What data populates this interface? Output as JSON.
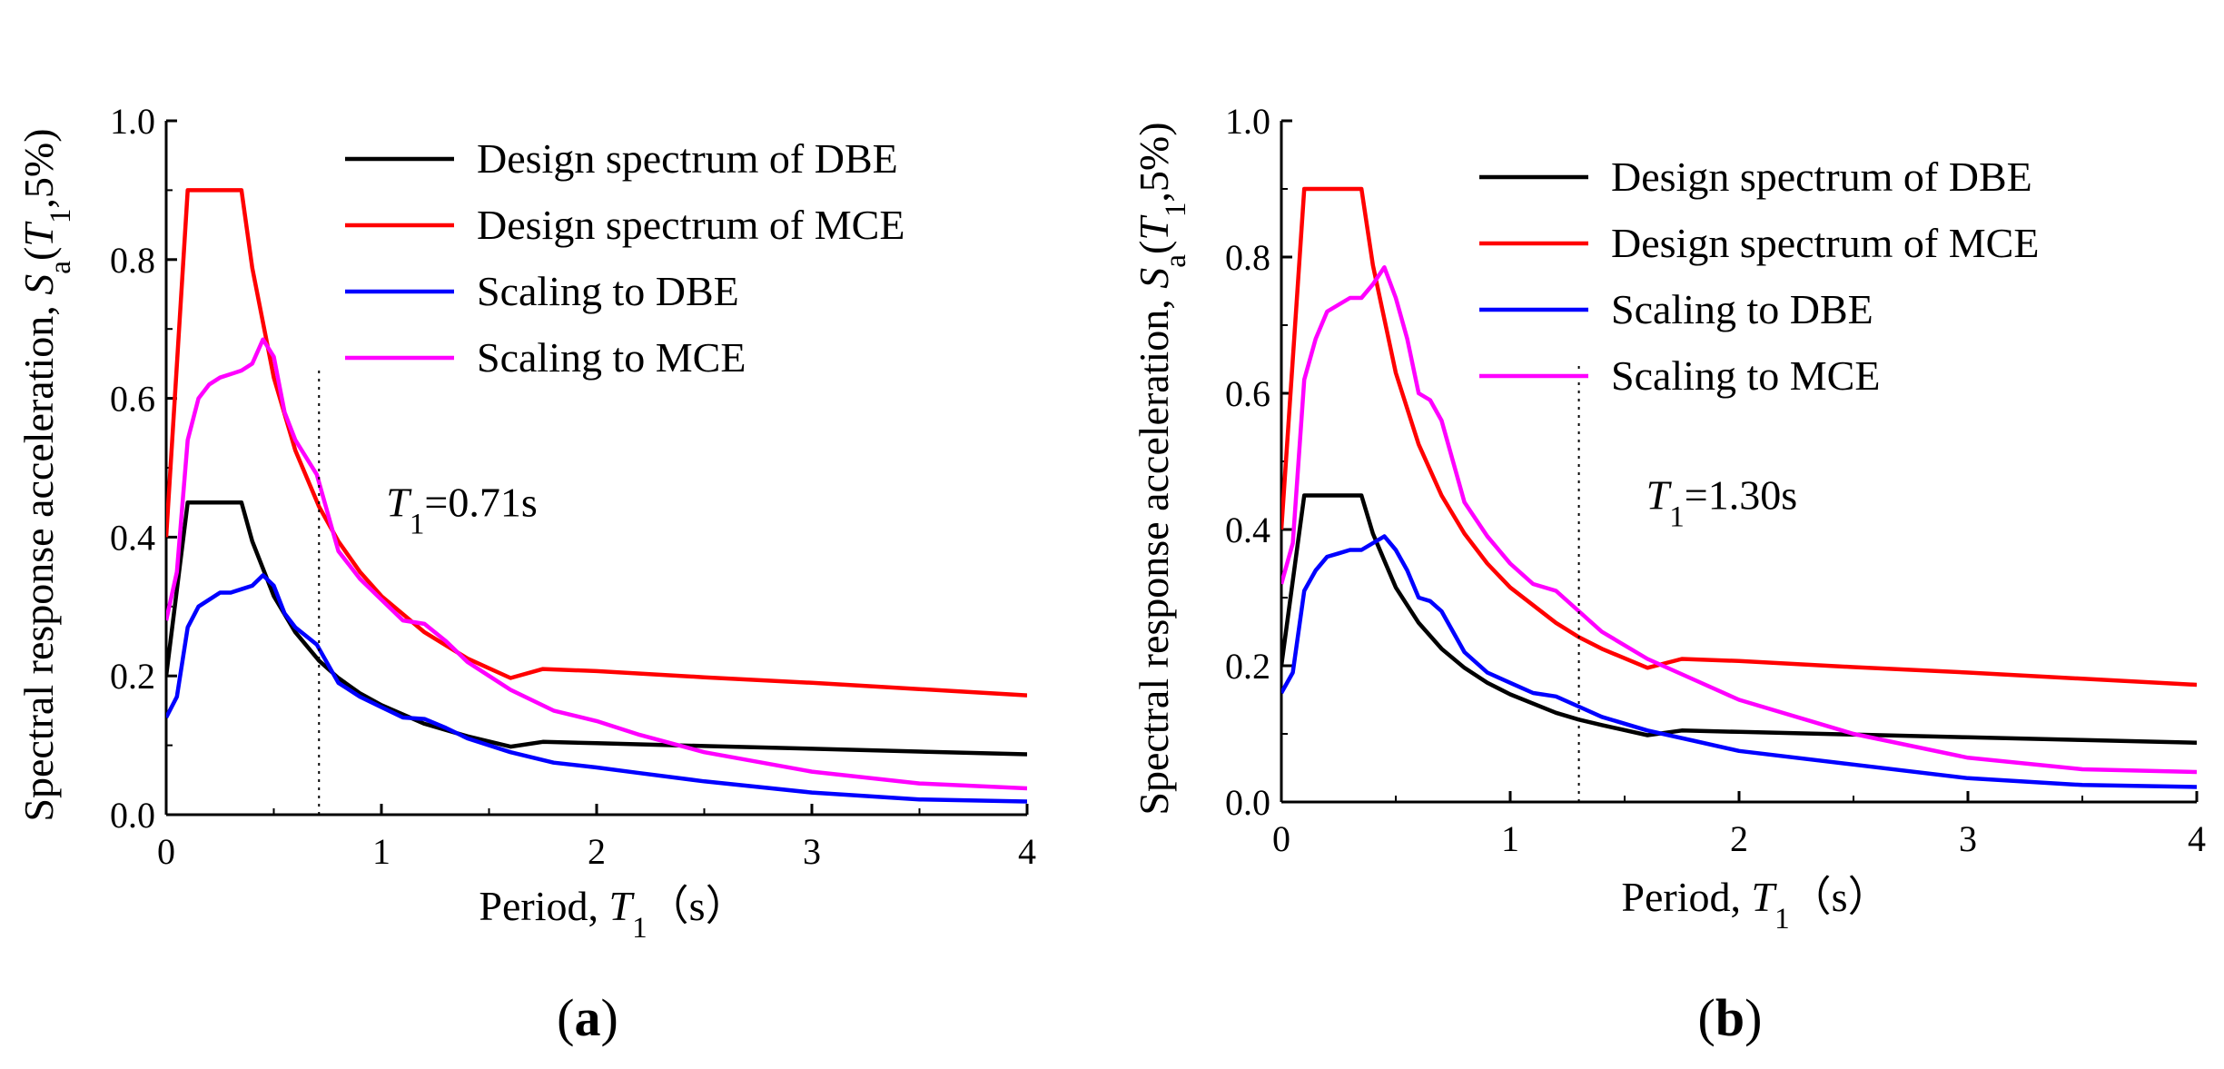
{
  "chart_data": [
    {
      "panel_id": "a",
      "panel_label": "(a)",
      "type": "line",
      "xlabel": "Period, T1（s）",
      "ylabel": "Spectral response acceleration, Sa(T1,5%)",
      "xlim": [
        0,
        4
      ],
      "ylim": [
        0,
        1.0
      ],
      "xticks": [
        0,
        1,
        2,
        3,
        4
      ],
      "yticks": [
        0.0,
        0.2,
        0.4,
        0.6,
        0.8,
        1.0
      ],
      "xtick_labels": [
        "0",
        "1",
        "2",
        "3",
        "4"
      ],
      "ytick_labels": [
        "0.0",
        "0.2",
        "0.4",
        "0.6",
        "0.8",
        "1.0"
      ],
      "grid": false,
      "legend_position": "top-right",
      "annotation": {
        "text": "T1=0.71s",
        "x": 0.71
      },
      "series": [
        {
          "name": "Design spectrum of DBE",
          "color": "#000000",
          "x": [
            0,
            0.1,
            0.35,
            0.4,
            0.5,
            0.6,
            0.71,
            0.8,
            0.9,
            1.0,
            1.2,
            1.4,
            1.6,
            1.75,
            2.0,
            2.5,
            3.0,
            3.5,
            4.0
          ],
          "y": [
            0.2,
            0.45,
            0.45,
            0.394,
            0.315,
            0.263,
            0.222,
            0.197,
            0.175,
            0.158,
            0.131,
            0.113,
            0.098,
            0.105,
            0.103,
            0.099,
            0.095,
            0.091,
            0.087
          ]
        },
        {
          "name": "Design spectrum of MCE",
          "color": "#ff0000",
          "x": [
            0,
            0.1,
            0.35,
            0.4,
            0.5,
            0.6,
            0.71,
            0.8,
            0.9,
            1.0,
            1.2,
            1.4,
            1.6,
            1.75,
            2.0,
            2.5,
            3.0,
            3.5,
            4.0
          ],
          "y": [
            0.4,
            0.9,
            0.9,
            0.788,
            0.63,
            0.525,
            0.444,
            0.394,
            0.35,
            0.315,
            0.263,
            0.225,
            0.197,
            0.21,
            0.207,
            0.198,
            0.19,
            0.181,
            0.172
          ]
        },
        {
          "name": "Scaling to DBE",
          "color": "#0000ff",
          "x": [
            0,
            0.05,
            0.1,
            0.15,
            0.2,
            0.25,
            0.3,
            0.35,
            0.4,
            0.45,
            0.5,
            0.55,
            0.6,
            0.7,
            0.8,
            0.9,
            1.0,
            1.1,
            1.2,
            1.3,
            1.4,
            1.5,
            1.6,
            1.8,
            2.0,
            2.2,
            2.5,
            3.0,
            3.5,
            4.0
          ],
          "y": [
            0.14,
            0.17,
            0.27,
            0.3,
            0.31,
            0.32,
            0.32,
            0.325,
            0.33,
            0.345,
            0.33,
            0.29,
            0.27,
            0.245,
            0.19,
            0.17,
            0.155,
            0.14,
            0.138,
            0.125,
            0.11,
            0.1,
            0.09,
            0.075,
            0.068,
            0.06,
            0.048,
            0.032,
            0.022,
            0.019
          ]
        },
        {
          "name": "Scaling to MCE",
          "color": "#ff00ff",
          "x": [
            0,
            0.05,
            0.1,
            0.15,
            0.2,
            0.25,
            0.3,
            0.35,
            0.4,
            0.45,
            0.5,
            0.55,
            0.6,
            0.7,
            0.8,
            0.9,
            1.0,
            1.1,
            1.2,
            1.3,
            1.4,
            1.5,
            1.6,
            1.8,
            2.0,
            2.2,
            2.5,
            3.0,
            3.5,
            4.0
          ],
          "y": [
            0.28,
            0.35,
            0.54,
            0.6,
            0.62,
            0.63,
            0.635,
            0.64,
            0.65,
            0.685,
            0.66,
            0.58,
            0.54,
            0.49,
            0.38,
            0.34,
            0.31,
            0.28,
            0.275,
            0.25,
            0.22,
            0.2,
            0.18,
            0.15,
            0.135,
            0.115,
            0.09,
            0.062,
            0.045,
            0.038
          ]
        }
      ]
    },
    {
      "panel_id": "b",
      "panel_label": "(b)",
      "type": "line",
      "xlabel": "Period, T1（s）",
      "ylabel": "Spectral response acceleration, Sa(T1,5%)",
      "xlim": [
        0,
        4
      ],
      "ylim": [
        0,
        1.0
      ],
      "xticks": [
        0,
        1,
        2,
        3,
        4
      ],
      "yticks": [
        0.0,
        0.2,
        0.4,
        0.6,
        0.8,
        1.0
      ],
      "xtick_labels": [
        "0",
        "1",
        "2",
        "3",
        "4"
      ],
      "ytick_labels": [
        "0.0",
        "0.2",
        "0.4",
        "0.6",
        "0.8",
        "1.0"
      ],
      "grid": false,
      "legend_position": "top-right",
      "annotation": {
        "text": "T1=1.30s",
        "x": 1.3
      },
      "series": [
        {
          "name": "Design spectrum of DBE",
          "color": "#000000",
          "x": [
            0,
            0.1,
            0.35,
            0.4,
            0.5,
            0.6,
            0.7,
            0.8,
            0.9,
            1.0,
            1.2,
            1.3,
            1.4,
            1.6,
            1.75,
            2.0,
            2.5,
            3.0,
            3.5,
            4.0
          ],
          "y": [
            0.2,
            0.45,
            0.45,
            0.394,
            0.315,
            0.263,
            0.225,
            0.197,
            0.175,
            0.158,
            0.131,
            0.121,
            0.113,
            0.098,
            0.105,
            0.103,
            0.099,
            0.095,
            0.091,
            0.087
          ]
        },
        {
          "name": "Design spectrum of MCE",
          "color": "#ff0000",
          "x": [
            0,
            0.1,
            0.35,
            0.4,
            0.5,
            0.6,
            0.7,
            0.8,
            0.9,
            1.0,
            1.2,
            1.3,
            1.4,
            1.6,
            1.75,
            2.0,
            2.5,
            3.0,
            3.5,
            4.0
          ],
          "y": [
            0.4,
            0.9,
            0.9,
            0.788,
            0.63,
            0.525,
            0.45,
            0.394,
            0.35,
            0.315,
            0.263,
            0.242,
            0.225,
            0.197,
            0.21,
            0.207,
            0.198,
            0.19,
            0.181,
            0.172
          ]
        },
        {
          "name": "Scaling to DBE",
          "color": "#0000ff",
          "x": [
            0,
            0.05,
            0.1,
            0.15,
            0.2,
            0.25,
            0.3,
            0.35,
            0.4,
            0.45,
            0.5,
            0.55,
            0.6,
            0.65,
            0.7,
            0.75,
            0.8,
            0.9,
            1.0,
            1.1,
            1.2,
            1.3,
            1.4,
            1.6,
            1.8,
            2.0,
            2.5,
            3.0,
            3.5,
            4.0
          ],
          "y": [
            0.16,
            0.19,
            0.31,
            0.34,
            0.36,
            0.365,
            0.37,
            0.37,
            0.38,
            0.39,
            0.37,
            0.34,
            0.3,
            0.295,
            0.28,
            0.25,
            0.22,
            0.19,
            0.175,
            0.16,
            0.155,
            0.14,
            0.125,
            0.105,
            0.09,
            0.075,
            0.055,
            0.035,
            0.025,
            0.022
          ]
        },
        {
          "name": "Scaling to MCE",
          "color": "#ff00ff",
          "x": [
            0,
            0.05,
            0.1,
            0.15,
            0.2,
            0.25,
            0.3,
            0.35,
            0.4,
            0.45,
            0.5,
            0.55,
            0.6,
            0.65,
            0.7,
            0.75,
            0.8,
            0.9,
            1.0,
            1.1,
            1.2,
            1.3,
            1.4,
            1.6,
            1.8,
            2.0,
            2.5,
            3.0,
            3.5,
            4.0
          ],
          "y": [
            0.32,
            0.38,
            0.62,
            0.68,
            0.72,
            0.73,
            0.74,
            0.74,
            0.76,
            0.785,
            0.74,
            0.68,
            0.6,
            0.59,
            0.56,
            0.5,
            0.44,
            0.39,
            0.35,
            0.32,
            0.31,
            0.28,
            0.25,
            0.21,
            0.18,
            0.15,
            0.1,
            0.065,
            0.048,
            0.044
          ]
        }
      ]
    }
  ]
}
